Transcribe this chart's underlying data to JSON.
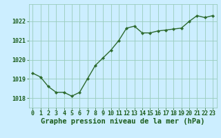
{
  "x": [
    0,
    1,
    2,
    3,
    4,
    5,
    6,
    7,
    8,
    9,
    10,
    11,
    12,
    13,
    14,
    15,
    16,
    17,
    18,
    19,
    20,
    21,
    22,
    23
  ],
  "y": [
    1019.3,
    1019.1,
    1018.6,
    1018.3,
    1018.3,
    1018.1,
    1018.3,
    1019.0,
    1019.7,
    1020.1,
    1020.5,
    1021.0,
    1021.65,
    1021.75,
    1021.4,
    1021.4,
    1021.5,
    1021.55,
    1021.6,
    1021.65,
    1022.0,
    1022.3,
    1022.2,
    1022.3
  ],
  "line_color": "#2d6a2d",
  "marker": "D",
  "marker_size": 2.2,
  "line_width": 1.0,
  "bg_color": "#cceeff",
  "grid_color": "#99ccbb",
  "xlabel": "Graphe pression niveau de la mer (hPa)",
  "xlabel_color": "#1a5c1a",
  "xlabel_fontsize": 7.5,
  "tick_color": "#1a5c1a",
  "tick_fontsize": 6.0,
  "ylim": [
    1017.5,
    1022.9
  ],
  "yticks": [
    1018,
    1019,
    1020,
    1021,
    1022
  ],
  "xlim": [
    -0.5,
    23.5
  ],
  "xticks": [
    0,
    1,
    2,
    3,
    4,
    5,
    6,
    7,
    8,
    9,
    10,
    11,
    12,
    13,
    14,
    15,
    16,
    17,
    18,
    19,
    20,
    21,
    22,
    23
  ]
}
